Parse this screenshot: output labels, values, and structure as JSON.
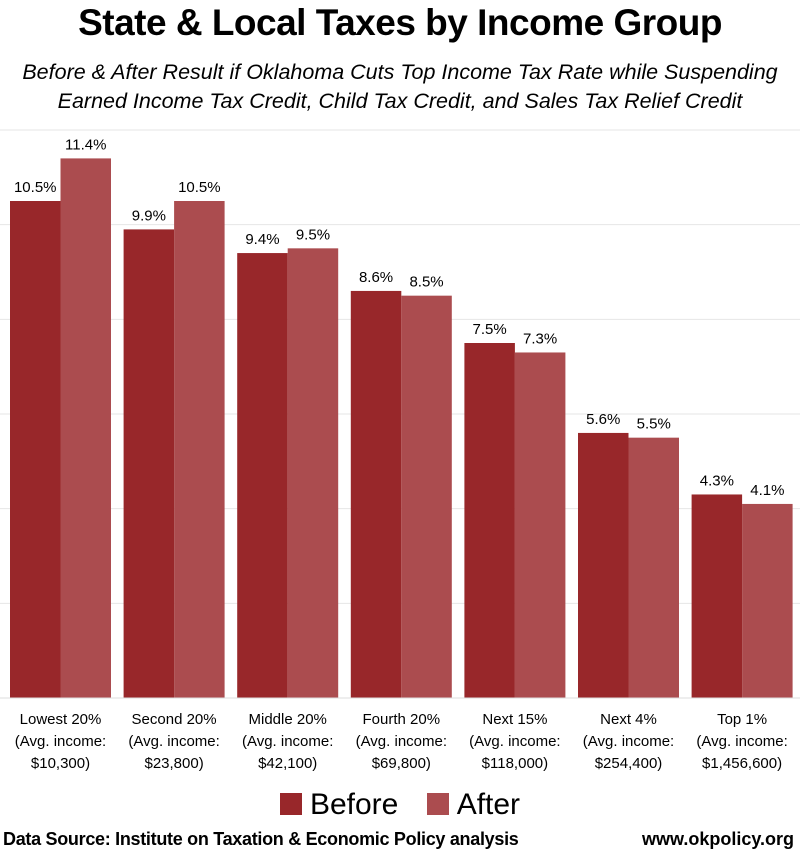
{
  "chart_data": {
    "type": "bar",
    "title": "State & Local Taxes by Income Group",
    "subtitle": [
      "Before & After Result if Oklahoma Cuts Top Income Tax Rate while Suspending",
      "Earned Income Tax Credit, Child Tax Credit, and Sales Tax Relief Credit"
    ],
    "categories": [
      [
        "Lowest 20%",
        "(Avg. income:",
        "$10,300)"
      ],
      [
        "Second 20%",
        "(Avg. income:",
        "$23,800)"
      ],
      [
        "Middle 20%",
        "(Avg. income:",
        "$42,100)"
      ],
      [
        "Fourth 20%",
        "(Avg. income:",
        "$69,800)"
      ],
      [
        "Next 15%",
        "(Avg. income:",
        "$118,000)"
      ],
      [
        "Next 4%",
        "(Avg. income:",
        "$254,400)"
      ],
      [
        "Top 1%",
        "(Avg. income:",
        "$1,456,600)"
      ]
    ],
    "series": [
      {
        "name": "Before",
        "color": "#98272a",
        "values": [
          10.5,
          9.9,
          9.4,
          8.6,
          7.5,
          5.6,
          4.3
        ],
        "labels": [
          "10.5%",
          "9.9%",
          "9.4%",
          "8.6%",
          "7.5%",
          "5.6%",
          "4.3%"
        ]
      },
      {
        "name": "After",
        "color": "#ab4c4f",
        "values": [
          11.4,
          10.5,
          9.5,
          8.5,
          7.3,
          5.5,
          4.1
        ],
        "labels": [
          "11.4%",
          "10.5%",
          "9.5%",
          "8.5%",
          "7.3%",
          "5.5%",
          "4.1%"
        ]
      }
    ],
    "ylim": [
      0,
      12
    ],
    "y_gridlines": [
      2,
      4,
      6,
      8,
      10,
      12
    ],
    "grid": true,
    "gridline_color": "#e6e6e6",
    "legend_position": "bottom-center",
    "xlabel": "",
    "ylabel": ""
  },
  "footer": {
    "source": "Data Source: Institute on Taxation & Economic Policy analysis",
    "site": "www.okpolicy.org"
  }
}
